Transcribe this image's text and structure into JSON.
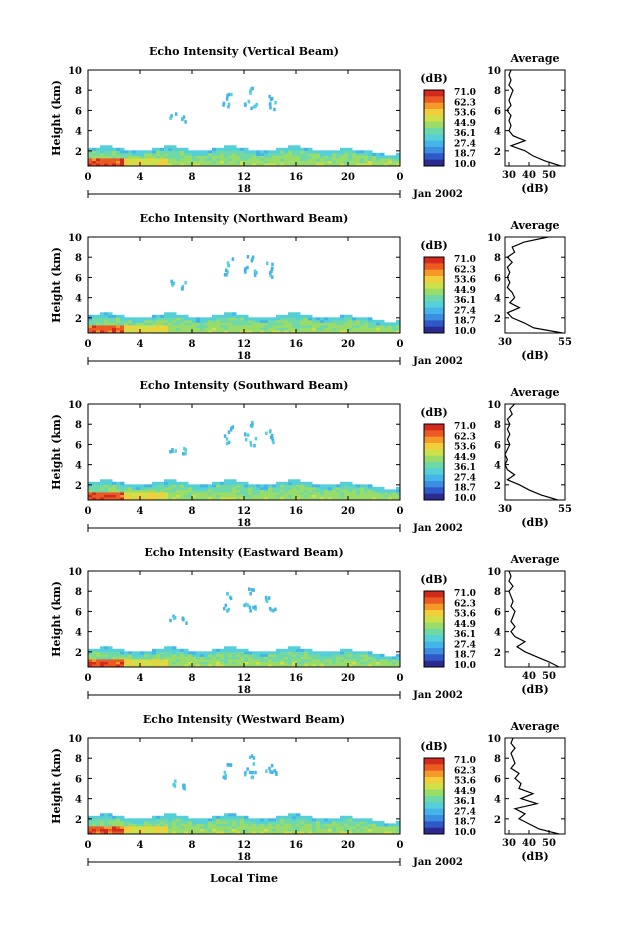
{
  "chart_data": [
    {
      "type": "heatmap",
      "title": "Echo Intensity (Vertical Beam)",
      "ylabel": "Height (km)",
      "xlabel": "",
      "date_label": "Jan 2002",
      "day_label": "18",
      "x_ticks": [
        "0",
        "4",
        "8",
        "12",
        "16",
        "20",
        "0"
      ],
      "y_ticks": [
        "2",
        "4",
        "6",
        "8",
        "10"
      ],
      "xlim": [
        0,
        24
      ],
      "ylim": [
        0.5,
        10
      ],
      "colorbar": {
        "unit": "(dB)",
        "ticks": [
          "71.0",
          "62.3",
          "53.6",
          "44.9",
          "36.1",
          "27.4",
          "18.7",
          "10.0"
        ]
      },
      "profile": {
        "title": "Average",
        "xlabel": "(dB)",
        "x_ticks": [
          "30",
          "40",
          "50"
        ],
        "xlim": [
          28,
          58
        ],
        "heights": [
          0.5,
          1.0,
          1.5,
          2.0,
          2.5,
          3.0,
          3.5,
          4.0,
          4.5,
          5.0,
          5.5,
          6.0,
          6.5,
          7.0,
          7.5,
          8.0,
          8.5,
          9.0,
          9.5,
          10.0
        ],
        "values": [
          56,
          48,
          42,
          38,
          31,
          38,
          32,
          30,
          31,
          30,
          31,
          29,
          31,
          30,
          31,
          32,
          30,
          31,
          30,
          31
        ]
      }
    },
    {
      "type": "heatmap",
      "title": "Echo Intensity (Northward Beam)",
      "ylabel": "Height (km)",
      "xlabel": "",
      "date_label": "Jan 2002",
      "day_label": "18",
      "x_ticks": [
        "0",
        "4",
        "8",
        "12",
        "16",
        "20",
        "0"
      ],
      "y_ticks": [
        "2",
        "4",
        "6",
        "8",
        "10"
      ],
      "xlim": [
        0,
        24
      ],
      "ylim": [
        0.5,
        10
      ],
      "colorbar": {
        "unit": "(dB)",
        "ticks": [
          "71.0",
          "62.3",
          "53.6",
          "44.9",
          "36.1",
          "27.4",
          "18.7",
          "10.0"
        ]
      },
      "profile": {
        "title": "Average",
        "xlabel": "(dB)",
        "x_ticks": [
          "30",
          "55"
        ],
        "xlim": [
          30,
          55
        ],
        "heights": [
          0.5,
          1.0,
          1.5,
          2.0,
          2.5,
          3.0,
          3.5,
          4.0,
          4.5,
          5.0,
          5.5,
          6.0,
          6.5,
          7.0,
          7.5,
          8.0,
          8.5,
          9.0,
          9.5,
          10.0
        ],
        "values": [
          54,
          42,
          38,
          33,
          31,
          36,
          32,
          34,
          33,
          31,
          32,
          31,
          32,
          31,
          33,
          31,
          34,
          33,
          38,
          48
        ]
      }
    },
    {
      "type": "heatmap",
      "title": "Echo Intensity (Southward Beam)",
      "ylabel": "Height (km)",
      "xlabel": "",
      "date_label": "Jan 2002",
      "day_label": "18",
      "x_ticks": [
        "0",
        "4",
        "8",
        "12",
        "16",
        "20",
        "0"
      ],
      "y_ticks": [
        "2",
        "4",
        "6",
        "8",
        "10"
      ],
      "xlim": [
        0,
        24
      ],
      "ylim": [
        0.5,
        10
      ],
      "colorbar": {
        "unit": "(dB)",
        "ticks": [
          "71.0",
          "62.3",
          "53.6",
          "44.9",
          "36.1",
          "27.4",
          "18.7",
          "10.0"
        ]
      },
      "profile": {
        "title": "Average",
        "xlabel": "(dB)",
        "x_ticks": [
          "30",
          "55"
        ],
        "xlim": [
          30,
          55
        ],
        "heights": [
          0.5,
          1.0,
          1.5,
          2.0,
          2.5,
          3.0,
          3.5,
          4.0,
          4.5,
          5.0,
          5.5,
          6.0,
          6.5,
          7.0,
          7.5,
          8.0,
          8.5,
          9.0,
          9.5,
          10.0
        ],
        "values": [
          52,
          45,
          40,
          36,
          31,
          34,
          31,
          30,
          31,
          30,
          31,
          32,
          31,
          32,
          31,
          32,
          31,
          33,
          32,
          34
        ]
      }
    },
    {
      "type": "heatmap",
      "title": "Echo Intensity (Eastward Beam)",
      "ylabel": "Height (km)",
      "xlabel": "",
      "date_label": "Jan 2002",
      "day_label": "18",
      "x_ticks": [
        "0",
        "4",
        "8",
        "12",
        "16",
        "20",
        "0"
      ],
      "y_ticks": [
        "2",
        "4",
        "6",
        "8",
        "10"
      ],
      "xlim": [
        0,
        24
      ],
      "ylim": [
        0.5,
        10
      ],
      "colorbar": {
        "unit": "(dB)",
        "ticks": [
          "71.0",
          "62.3",
          "53.6",
          "44.9",
          "36.1",
          "27.4",
          "18.7",
          "10.0"
        ]
      },
      "profile": {
        "title": "Average",
        "xlabel": "(dB)",
        "x_ticks": [
          "40",
          "50"
        ],
        "xlim": [
          28,
          58
        ],
        "heights": [
          0.5,
          1.0,
          1.5,
          2.0,
          2.5,
          3.0,
          3.5,
          4.0,
          4.5,
          5.0,
          5.5,
          6.0,
          6.5,
          7.0,
          7.5,
          8.0,
          8.5,
          9.0,
          9.5,
          10.0
        ],
        "values": [
          55,
          50,
          44,
          38,
          34,
          38,
          33,
          31,
          33,
          31,
          32,
          33,
          31,
          32,
          31,
          30,
          32,
          30,
          31,
          30
        ]
      }
    },
    {
      "type": "heatmap",
      "title": "Echo Intensity (Westward Beam)",
      "ylabel": "Height (km)",
      "xlabel": "Local Time",
      "date_label": "Jan 2002",
      "day_label": "18",
      "x_ticks": [
        "0",
        "4",
        "8",
        "12",
        "16",
        "20",
        "0"
      ],
      "y_ticks": [
        "2",
        "4",
        "6",
        "8",
        "10"
      ],
      "xlim": [
        0,
        24
      ],
      "ylim": [
        0.5,
        10
      ],
      "colorbar": {
        "unit": "(dB)",
        "ticks": [
          "71.0",
          "62.3",
          "53.6",
          "44.9",
          "36.1",
          "27.4",
          "18.7",
          "10.0"
        ]
      },
      "profile": {
        "title": "Average",
        "xlabel": "(dB)",
        "x_ticks": [
          "30",
          "40",
          "50"
        ],
        "xlim": [
          28,
          58
        ],
        "heights": [
          0.5,
          1.0,
          1.5,
          2.0,
          2.5,
          3.0,
          3.5,
          4.0,
          4.5,
          5.0,
          5.5,
          6.0,
          6.5,
          7.0,
          7.5,
          8.0,
          8.5,
          9.0,
          9.5,
          10.0
        ],
        "values": [
          55,
          45,
          40,
          35,
          38,
          33,
          44,
          36,
          42,
          35,
          36,
          33,
          35,
          31,
          33,
          32,
          31,
          33,
          31,
          32
        ]
      }
    }
  ]
}
